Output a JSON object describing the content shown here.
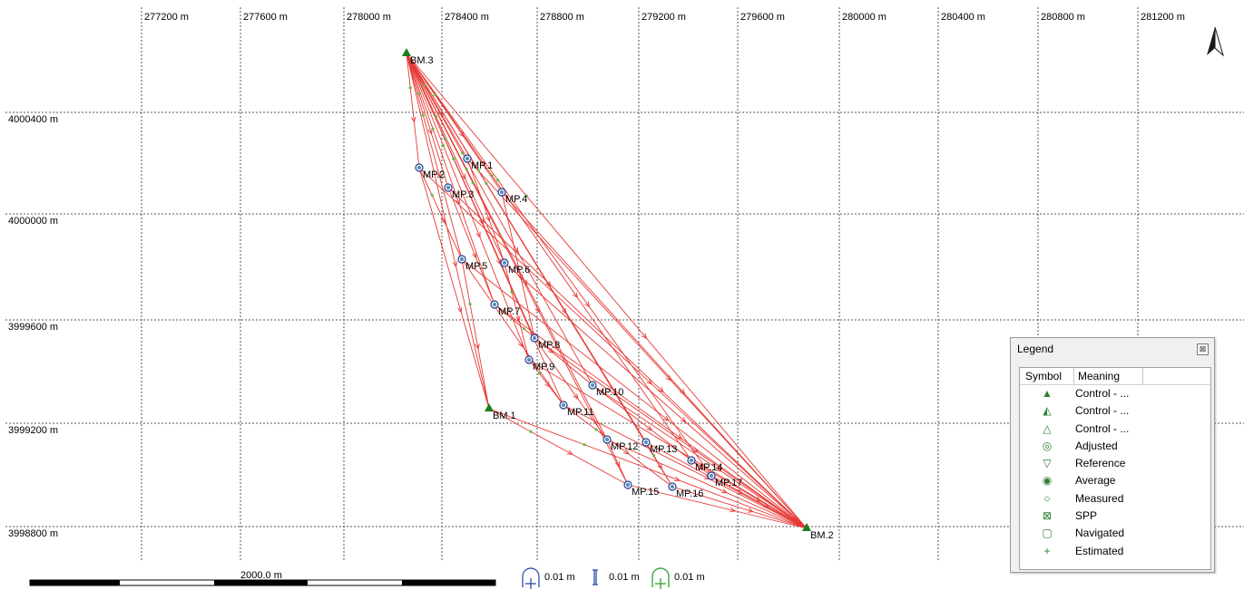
{
  "x_axis_labels": [
    "277200 m",
    "277600 m",
    "278000 m",
    "278400 m",
    "278800 m",
    "279200 m",
    "279600 m",
    "280000 m",
    "280400 m",
    "280800 m",
    "281200 m"
  ],
  "y_axis_labels": [
    "4000400 m",
    "4000000 m",
    "3999600 m",
    "3999200 m",
    "3998800 m"
  ],
  "points": [
    {
      "name": "BM.3",
      "type": "control"
    },
    {
      "name": "BM.2",
      "type": "control"
    },
    {
      "name": "BM.1",
      "type": "control"
    },
    {
      "name": "MP.1",
      "type": "measured"
    },
    {
      "name": "MP.2",
      "type": "measured"
    },
    {
      "name": "MP.3",
      "type": "measured"
    },
    {
      "name": "MP.4",
      "type": "measured"
    },
    {
      "name": "MP.5",
      "type": "measured"
    },
    {
      "name": "MP.6",
      "type": "measured"
    },
    {
      "name": "MP.7",
      "type": "measured"
    },
    {
      "name": "MP.8",
      "type": "measured"
    },
    {
      "name": "MP.9",
      "type": "measured"
    },
    {
      "name": "MP.10",
      "type": "measured"
    },
    {
      "name": "MP.11",
      "type": "measured"
    },
    {
      "name": "MP.12",
      "type": "measured"
    },
    {
      "name": "MP.13",
      "type": "measured"
    },
    {
      "name": "MP.14",
      "type": "measured"
    },
    {
      "name": "MP.15",
      "type": "measured"
    },
    {
      "name": "MP.16",
      "type": "measured"
    },
    {
      "name": "MP.17",
      "type": "measured"
    }
  ],
  "scale_bar": {
    "label": "2000.0 m"
  },
  "tolerances": {
    "horizontal": "0.01 m",
    "vertical": "0.01 m",
    "control": "0.01 m"
  },
  "legend": {
    "title": "Legend",
    "close_glyph": "⊠",
    "col_symbol": "Symbol",
    "col_meaning": "Meaning",
    "rows": [
      {
        "symbol": "▲",
        "meaning": "Control - ..."
      },
      {
        "symbol": "◭",
        "meaning": "Control - ..."
      },
      {
        "symbol": "△",
        "meaning": "Control - ..."
      },
      {
        "symbol": "◎",
        "meaning": "Adjusted"
      },
      {
        "symbol": "▽",
        "meaning": "Reference"
      },
      {
        "symbol": "◉",
        "meaning": "Average"
      },
      {
        "symbol": "○",
        "meaning": "Measured"
      },
      {
        "symbol": "⊠",
        "meaning": "SPP"
      },
      {
        "symbol": "▢",
        "meaning": "Navigated"
      },
      {
        "symbol": "+",
        "meaning": "Estimated"
      }
    ]
  },
  "colors": {
    "vector": "#e53935",
    "control": "#1b7f1b",
    "point_fill": "#5b8fb9",
    "grid": "#555555"
  }
}
